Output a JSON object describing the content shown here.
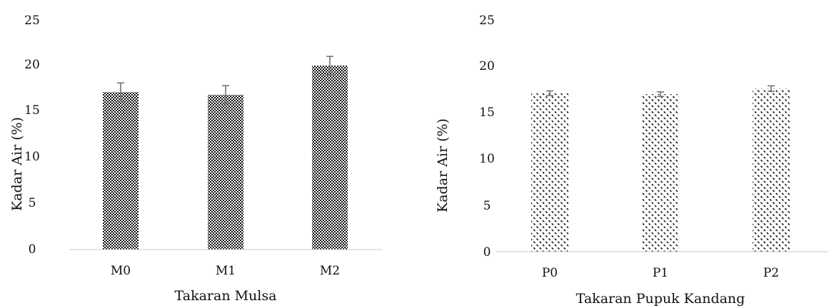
{
  "chart_data": [
    {
      "type": "bar",
      "categories": [
        "M0",
        "M1",
        "M2"
      ],
      "values": [
        17.2,
        16.9,
        20.1
      ],
      "error": [
        1.0,
        1.0,
        1.0
      ],
      "xlabel": "Takaran Mulsa",
      "ylabel": "Kadar Air (%)",
      "ylim": [
        0,
        25
      ],
      "yticks": [
        0,
        5,
        10,
        15,
        20,
        25
      ],
      "pattern": "checker",
      "grid": false
    },
    {
      "type": "bar",
      "categories": [
        "P0",
        "P1",
        "P2"
      ],
      "values": [
        17.2,
        17.1,
        17.7
      ],
      "error": [
        0.25,
        0.25,
        0.3
      ],
      "xlabel": "Takaran Pupuk Kandang",
      "ylabel": "Kadar Air (%)",
      "ylim": [
        0,
        25
      ],
      "yticks": [
        0,
        5,
        10,
        15,
        20,
        25
      ],
      "pattern": "diagonal-dots",
      "grid": false
    }
  ]
}
